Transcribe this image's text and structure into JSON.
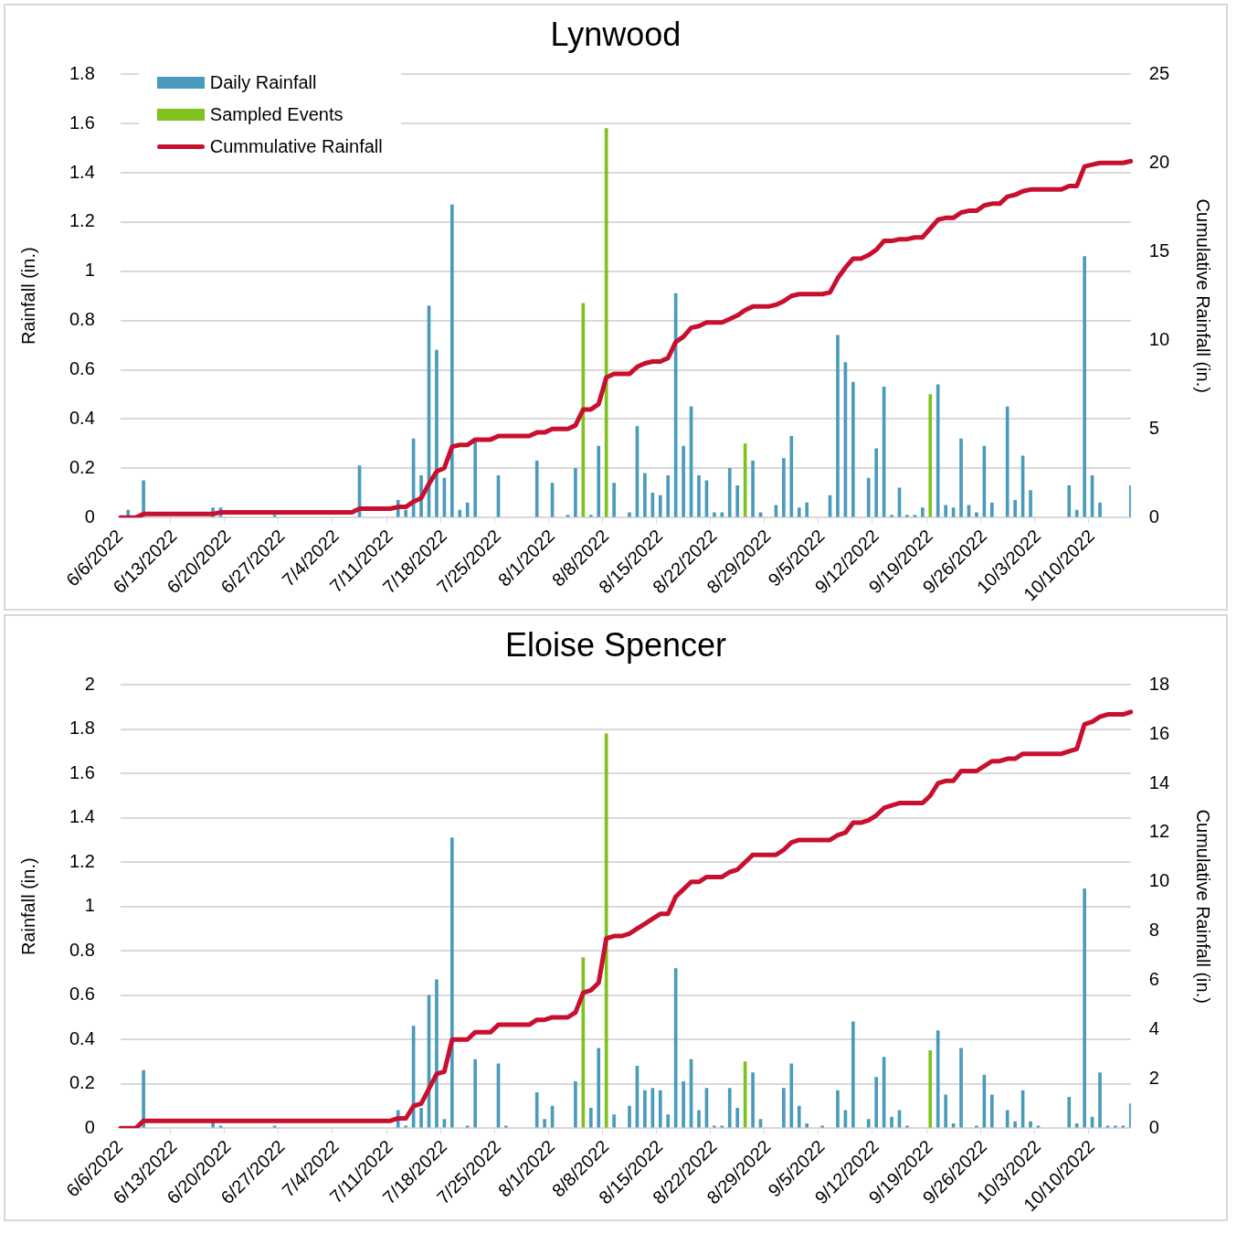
{
  "chart_data": [
    {
      "type": "bar",
      "title": "Lynwood",
      "ylabel": "Rainfall (in.)",
      "y2label": "Cumulative Rainfall (in.)",
      "categories": [
        "6/6/2022",
        null,
        null,
        null,
        null,
        null,
        null,
        "6/13/2022",
        null,
        null,
        null,
        null,
        null,
        null,
        "6/20/2022",
        null,
        null,
        null,
        null,
        null,
        null,
        "6/27/2022",
        null,
        null,
        null,
        null,
        null,
        null,
        "7/4/2022",
        null,
        null,
        null,
        null,
        null,
        null,
        "7/11/2022",
        null,
        null,
        null,
        null,
        null,
        null,
        "7/18/2022",
        null,
        null,
        null,
        null,
        null,
        null,
        "7/25/2022",
        null,
        null,
        null,
        null,
        null,
        null,
        "8/1/2022",
        null,
        null,
        null,
        null,
        null,
        null,
        "8/8/2022",
        null,
        null,
        null,
        null,
        null,
        null,
        "8/15/2022",
        null,
        null,
        null,
        null,
        null,
        null,
        "8/22/2022",
        null,
        null,
        null,
        null,
        null,
        null,
        "8/29/2022",
        null,
        null,
        null,
        null,
        null,
        null,
        "9/5/2022",
        null,
        null,
        null,
        null,
        null,
        null,
        "9/12/2022",
        null,
        null,
        null,
        null,
        null,
        null,
        "9/19/2022",
        null,
        null,
        null,
        null,
        null,
        null,
        "9/26/2022",
        null,
        null,
        null,
        null,
        null,
        null,
        "10/3/2022",
        null,
        null,
        null,
        null,
        null,
        null,
        "10/10/2022",
        null,
        null,
        null,
        null,
        null
      ],
      "series": [
        {
          "name": "Daily Rainfall",
          "color": "#4a9bbb",
          "values": [
            null,
            0.03,
            null,
            0.15,
            null,
            null,
            null,
            null,
            null,
            null,
            null,
            null,
            0.04,
            0.04,
            null,
            null,
            null,
            null,
            null,
            null,
            0.01,
            null,
            null,
            null,
            null,
            null,
            null,
            null,
            null,
            null,
            null,
            0.21,
            null,
            null,
            null,
            null,
            0.07,
            0.03,
            0.32,
            0.17,
            0.86,
            0.68,
            0.16,
            1.27,
            0.03,
            0.06,
            0.31,
            null,
            null,
            0.17,
            null,
            null,
            null,
            null,
            0.23,
            null,
            0.14,
            null,
            0.01,
            0.2,
            null,
            0.01,
            0.29,
            null,
            0.14,
            null,
            0.02,
            0.37,
            0.18,
            0.1,
            0.09,
            0.17,
            0.91,
            0.29,
            0.45,
            0.17,
            0.15,
            0.02,
            0.02,
            0.2,
            0.13,
            null,
            0.23,
            0.02,
            null,
            0.05,
            0.24,
            0.33,
            0.04,
            0.06,
            null,
            null,
            0.09,
            0.74,
            0.63,
            0.55,
            null,
            0.16,
            0.28,
            0.53,
            0.01,
            0.12,
            0.01,
            0.01,
            0.04,
            null,
            0.54,
            0.05,
            0.04,
            0.32,
            0.05,
            0.02,
            0.29,
            0.06,
            null,
            0.45,
            0.07,
            0.25,
            0.11,
            null,
            null,
            null,
            null,
            0.13,
            0.03,
            1.06,
            0.17,
            0.06,
            null,
            null,
            null,
            0.13
          ]
        },
        {
          "name": "Sampled Events",
          "color": "#7dc21e",
          "values": [
            null,
            null,
            null,
            null,
            null,
            null,
            null,
            null,
            null,
            null,
            null,
            null,
            null,
            null,
            null,
            null,
            null,
            null,
            null,
            null,
            null,
            null,
            null,
            null,
            null,
            null,
            null,
            null,
            null,
            null,
            null,
            null,
            null,
            null,
            null,
            null,
            null,
            null,
            null,
            null,
            null,
            null,
            null,
            null,
            null,
            null,
            null,
            null,
            null,
            null,
            null,
            null,
            null,
            null,
            null,
            null,
            null,
            null,
            null,
            null,
            0.87,
            null,
            null,
            1.58,
            null,
            null,
            null,
            null,
            null,
            null,
            null,
            null,
            null,
            null,
            null,
            null,
            null,
            null,
            null,
            null,
            null,
            0.3,
            null,
            null,
            null,
            null,
            null,
            null,
            null,
            null,
            null,
            null,
            null,
            null,
            null,
            null,
            null,
            null,
            null,
            null,
            null,
            null,
            null,
            null,
            null,
            0.5,
            null,
            null,
            null,
            null,
            null,
            null,
            null,
            null,
            null,
            null,
            null,
            null,
            null,
            null,
            null,
            null,
            null,
            null,
            null,
            null,
            null,
            null,
            null,
            null,
            null,
            null
          ]
        },
        {
          "name": "Cummulative Rainfall",
          "type": "line",
          "axis": "y2",
          "color": "#c8102e",
          "values": [
            0,
            0,
            0,
            0.2,
            0.2,
            0.2,
            0.2,
            0.2,
            0.2,
            0.2,
            0.2,
            0.2,
            0.2,
            0.3,
            0.3,
            0.3,
            0.3,
            0.3,
            0.3,
            0.3,
            0.3,
            0.3,
            0.3,
            0.3,
            0.3,
            0.3,
            0.3,
            0.3,
            0.3,
            0.3,
            0.3,
            0.5,
            0.5,
            0.5,
            0.5,
            0.5,
            0.6,
            0.6,
            0.9,
            1.1,
            1.9,
            2.6,
            2.8,
            4.0,
            4.1,
            4.1,
            4.4,
            4.4,
            4.4,
            4.6,
            4.6,
            4.6,
            4.6,
            4.6,
            4.8,
            4.8,
            5.0,
            5.0,
            5.0,
            5.2,
            6.1,
            6.1,
            6.4,
            7.9,
            8.1,
            8.1,
            8.1,
            8.5,
            8.7,
            8.8,
            8.8,
            9.0,
            9.9,
            10.2,
            10.7,
            10.8,
            11.0,
            11.0,
            11.0,
            11.2,
            11.4,
            11.7,
            11.9,
            11.9,
            11.9,
            12.0,
            12.2,
            12.5,
            12.6,
            12.6,
            12.6,
            12.6,
            12.7,
            13.5,
            14.1,
            14.6,
            14.6,
            14.8,
            15.1,
            15.6,
            15.6,
            15.7,
            15.7,
            15.8,
            15.8,
            16.3,
            16.8,
            16.9,
            16.9,
            17.2,
            17.3,
            17.3,
            17.6,
            17.7,
            17.7,
            18.1,
            18.2,
            18.4,
            18.5,
            18.5,
            18.5,
            18.5,
            18.5,
            18.7,
            18.7,
            19.8,
            19.9,
            20.0,
            20.0,
            20.0,
            20.0,
            20.1
          ]
        }
      ],
      "ylim": [
        0,
        1.8
      ],
      "yticks": [
        0,
        0.2,
        0.4,
        0.6,
        0.8,
        1,
        1.2,
        1.4,
        1.6,
        1.8
      ],
      "y2lim": [
        0,
        25
      ],
      "y2ticks": [
        0,
        5,
        10,
        15,
        20,
        25
      ],
      "grid": "y",
      "legend": "top left",
      "marker": "none",
      "line_style": "solid"
    },
    {
      "type": "bar",
      "title": "Eloise Spencer",
      "ylabel": "Rainfall (in.)",
      "y2label": "Cumulative Rainfall (in.)",
      "categories": [
        "6/6/2022",
        null,
        null,
        null,
        null,
        null,
        null,
        "6/13/2022",
        null,
        null,
        null,
        null,
        null,
        null,
        "6/20/2022",
        null,
        null,
        null,
        null,
        null,
        null,
        "6/27/2022",
        null,
        null,
        null,
        null,
        null,
        null,
        "7/4/2022",
        null,
        null,
        null,
        null,
        null,
        null,
        "7/11/2022",
        null,
        null,
        null,
        null,
        null,
        null,
        "7/18/2022",
        null,
        null,
        null,
        null,
        null,
        null,
        "7/25/2022",
        null,
        null,
        null,
        null,
        null,
        null,
        "8/1/2022",
        null,
        null,
        null,
        null,
        null,
        null,
        "8/8/2022",
        null,
        null,
        null,
        null,
        null,
        null,
        "8/15/2022",
        null,
        null,
        null,
        null,
        null,
        null,
        "8/22/2022",
        null,
        null,
        null,
        null,
        null,
        null,
        "8/29/2022",
        null,
        null,
        null,
        null,
        null,
        null,
        "9/5/2022",
        null,
        null,
        null,
        null,
        null,
        null,
        "9/12/2022",
        null,
        null,
        null,
        null,
        null,
        null,
        "9/19/2022",
        null,
        null,
        null,
        null,
        null,
        null,
        "9/26/2022",
        null,
        null,
        null,
        null,
        null,
        null,
        "10/3/2022",
        null,
        null,
        null,
        null,
        null,
        null,
        "10/10/2022",
        null,
        null,
        null,
        null,
        null
      ],
      "series": [
        {
          "color": "#4a9bbb",
          "values": [
            null,
            null,
            null,
            0.26,
            null,
            null,
            null,
            null,
            null,
            null,
            null,
            null,
            0.03,
            0.01,
            null,
            null,
            null,
            null,
            null,
            null,
            0.01,
            null,
            null,
            null,
            null,
            null,
            null,
            null,
            null,
            null,
            null,
            null,
            null,
            null,
            null,
            null,
            0.08,
            0.01,
            0.46,
            0.09,
            0.6,
            0.67,
            0.04,
            1.31,
            null,
            0.01,
            0.31,
            null,
            null,
            0.29,
            0.01,
            null,
            null,
            null,
            0.16,
            0.04,
            0.1,
            null,
            null,
            0.21,
            null,
            0.09,
            0.36,
            null,
            0.06,
            null,
            0.1,
            0.28,
            0.17,
            0.18,
            0.17,
            0.06,
            0.72,
            0.21,
            0.31,
            0.08,
            0.18,
            0.01,
            0.01,
            0.18,
            0.09,
            null,
            0.25,
            0.04,
            null,
            null,
            0.18,
            0.29,
            0.1,
            0.02,
            null,
            0.01,
            null,
            0.17,
            0.08,
            0.48,
            null,
            0.04,
            0.23,
            0.32,
            0.05,
            0.08,
            0.01,
            null,
            null,
            null,
            0.44,
            0.15,
            0.02,
            0.36,
            null,
            0.01,
            0.24,
            0.15,
            null,
            0.08,
            0.03,
            0.17,
            0.03,
            0.01,
            null,
            null,
            null,
            0.14,
            0.02,
            1.08,
            0.05,
            0.25,
            0.01,
            0.01,
            0.01,
            0.11
          ]
        },
        {
          "color": "#7dc21e",
          "values": [
            null,
            null,
            null,
            null,
            null,
            null,
            null,
            null,
            null,
            null,
            null,
            null,
            null,
            null,
            null,
            null,
            null,
            null,
            null,
            null,
            null,
            null,
            null,
            null,
            null,
            null,
            null,
            null,
            null,
            null,
            null,
            null,
            null,
            null,
            null,
            null,
            null,
            null,
            null,
            null,
            null,
            null,
            null,
            null,
            null,
            null,
            null,
            null,
            null,
            null,
            null,
            null,
            null,
            null,
            null,
            null,
            null,
            null,
            null,
            null,
            0.77,
            null,
            null,
            1.78,
            null,
            null,
            null,
            null,
            null,
            null,
            null,
            null,
            null,
            null,
            null,
            null,
            null,
            null,
            null,
            null,
            null,
            0.3,
            null,
            null,
            null,
            null,
            null,
            null,
            null,
            null,
            null,
            null,
            null,
            null,
            null,
            null,
            null,
            null,
            null,
            null,
            null,
            null,
            null,
            null,
            null,
            0.35,
            null,
            null,
            null,
            null,
            null,
            null,
            null,
            null,
            null,
            null,
            null,
            null,
            null,
            null,
            null,
            null,
            null,
            null,
            null,
            null,
            null,
            null,
            null,
            null,
            null,
            null
          ]
        },
        {
          "type": "line",
          "axis": "y2",
          "color": "#c8102e",
          "values": [
            0,
            0,
            0,
            0.3,
            0.3,
            0.3,
            0.3,
            0.3,
            0.3,
            0.3,
            0.3,
            0.3,
            0.3,
            0.3,
            0.3,
            0.3,
            0.3,
            0.3,
            0.3,
            0.3,
            0.3,
            0.3,
            0.3,
            0.3,
            0.3,
            0.3,
            0.3,
            0.3,
            0.3,
            0.3,
            0.3,
            0.3,
            0.3,
            0.3,
            0.3,
            0.3,
            0.4,
            0.4,
            0.9,
            1.0,
            1.6,
            2.2,
            2.3,
            3.6,
            3.6,
            3.6,
            3.9,
            3.9,
            3.9,
            4.2,
            4.2,
            4.2,
            4.2,
            4.2,
            4.4,
            4.4,
            4.5,
            4.5,
            4.5,
            4.7,
            5.5,
            5.6,
            5.9,
            7.7,
            7.8,
            7.8,
            7.9,
            8.1,
            8.3,
            8.5,
            8.7,
            8.7,
            9.4,
            9.7,
            10.0,
            10.0,
            10.2,
            10.2,
            10.2,
            10.4,
            10.5,
            10.8,
            11.1,
            11.1,
            11.1,
            11.1,
            11.3,
            11.6,
            11.7,
            11.7,
            11.7,
            11.7,
            11.7,
            11.9,
            12.0,
            12.4,
            12.4,
            12.5,
            12.7,
            13.0,
            13.1,
            13.2,
            13.2,
            13.2,
            13.2,
            13.5,
            14.0,
            14.1,
            14.1,
            14.5,
            14.5,
            14.5,
            14.7,
            14.9,
            14.9,
            15.0,
            15.0,
            15.2,
            15.2,
            15.2,
            15.2,
            15.2,
            15.2,
            15.3,
            15.4,
            16.4,
            16.5,
            16.7,
            16.8,
            16.8,
            16.8,
            16.9
          ]
        }
      ],
      "ylim": [
        0,
        2
      ],
      "yticks": [
        0,
        0.2,
        0.4,
        0.6,
        0.8,
        1,
        1.2,
        1.4,
        1.6,
        1.8,
        2
      ],
      "y2lim": [
        0,
        18
      ],
      "y2ticks": [
        0,
        2,
        4,
        6,
        8,
        10,
        12,
        14,
        16,
        18
      ],
      "grid": "y",
      "marker": "none",
      "line_style": "solid"
    }
  ]
}
